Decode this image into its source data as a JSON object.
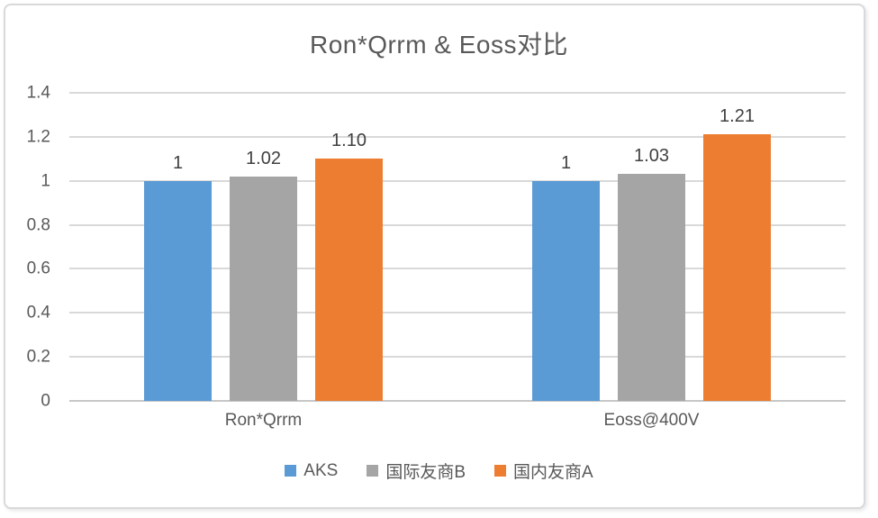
{
  "chart_data": {
    "type": "bar",
    "title": "Ron*Qrrm & Eoss对比",
    "categories": [
      "Ron*Qrrm",
      "Eoss@400V"
    ],
    "series": [
      {
        "id": "aks",
        "name": "AKS",
        "color": "#5B9BD5",
        "values": [
          1.0,
          1.0
        ],
        "labels": [
          "1",
          "1"
        ]
      },
      {
        "id": "intl-peer-b",
        "name": "国际友商B",
        "color": "#A5A5A5",
        "values": [
          1.02,
          1.03
        ],
        "labels": [
          "1.02",
          "1.03"
        ]
      },
      {
        "id": "domestic-peer-a",
        "name": "国内友商A",
        "color": "#ED7D31",
        "values": [
          1.1,
          1.21
        ],
        "labels": [
          "1.10",
          "1.21"
        ]
      }
    ],
    "xlabel": "",
    "ylabel": "",
    "ylim": [
      0,
      1.4
    ],
    "y_ticks": [
      "0",
      "0.2",
      "0.4",
      "0.6",
      "0.8",
      "1",
      "1.2",
      "1.4"
    ],
    "grid": "horizontal",
    "legend_position": "bottom",
    "colors": {
      "gridline": "#D9D9D9",
      "axis_line": "#C6C6C6",
      "title_text": "#595959",
      "tick_text": "#595959",
      "data_label_text": "#404040",
      "frame_border": "#D9D9D9",
      "background": "#FFFFFF"
    }
  }
}
